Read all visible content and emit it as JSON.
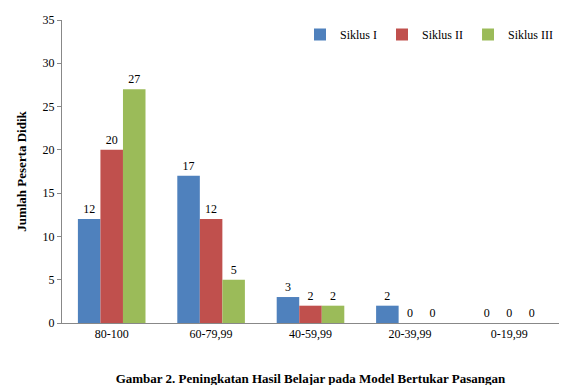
{
  "chart_data": {
    "type": "bar",
    "title": "Gambar 2. Peningkatan Hasil Belajar pada Model Bertukar Pasangan",
    "y_label": "Jumlah Peserta Didik",
    "categories": [
      "80-100",
      "60-79,99",
      "40-59,99",
      "20-39,99",
      "0-19,99"
    ],
    "series": [
      {
        "name": "Siklus I",
        "color": "#4f81bd",
        "values": [
          12,
          17,
          3,
          2,
          0
        ]
      },
      {
        "name": "Siklus II",
        "color": "#c0504d",
        "values": [
          20,
          12,
          2,
          0,
          0
        ]
      },
      {
        "name": "Siklus III",
        "color": "#9bbb59",
        "values": [
          27,
          5,
          2,
          0,
          0
        ]
      }
    ],
    "ylim": [
      0,
      35
    ],
    "yticks": [
      0,
      5,
      10,
      15,
      20,
      25,
      30,
      35
    ],
    "grid": false,
    "legend": "upper right",
    "data_labels": true
  }
}
